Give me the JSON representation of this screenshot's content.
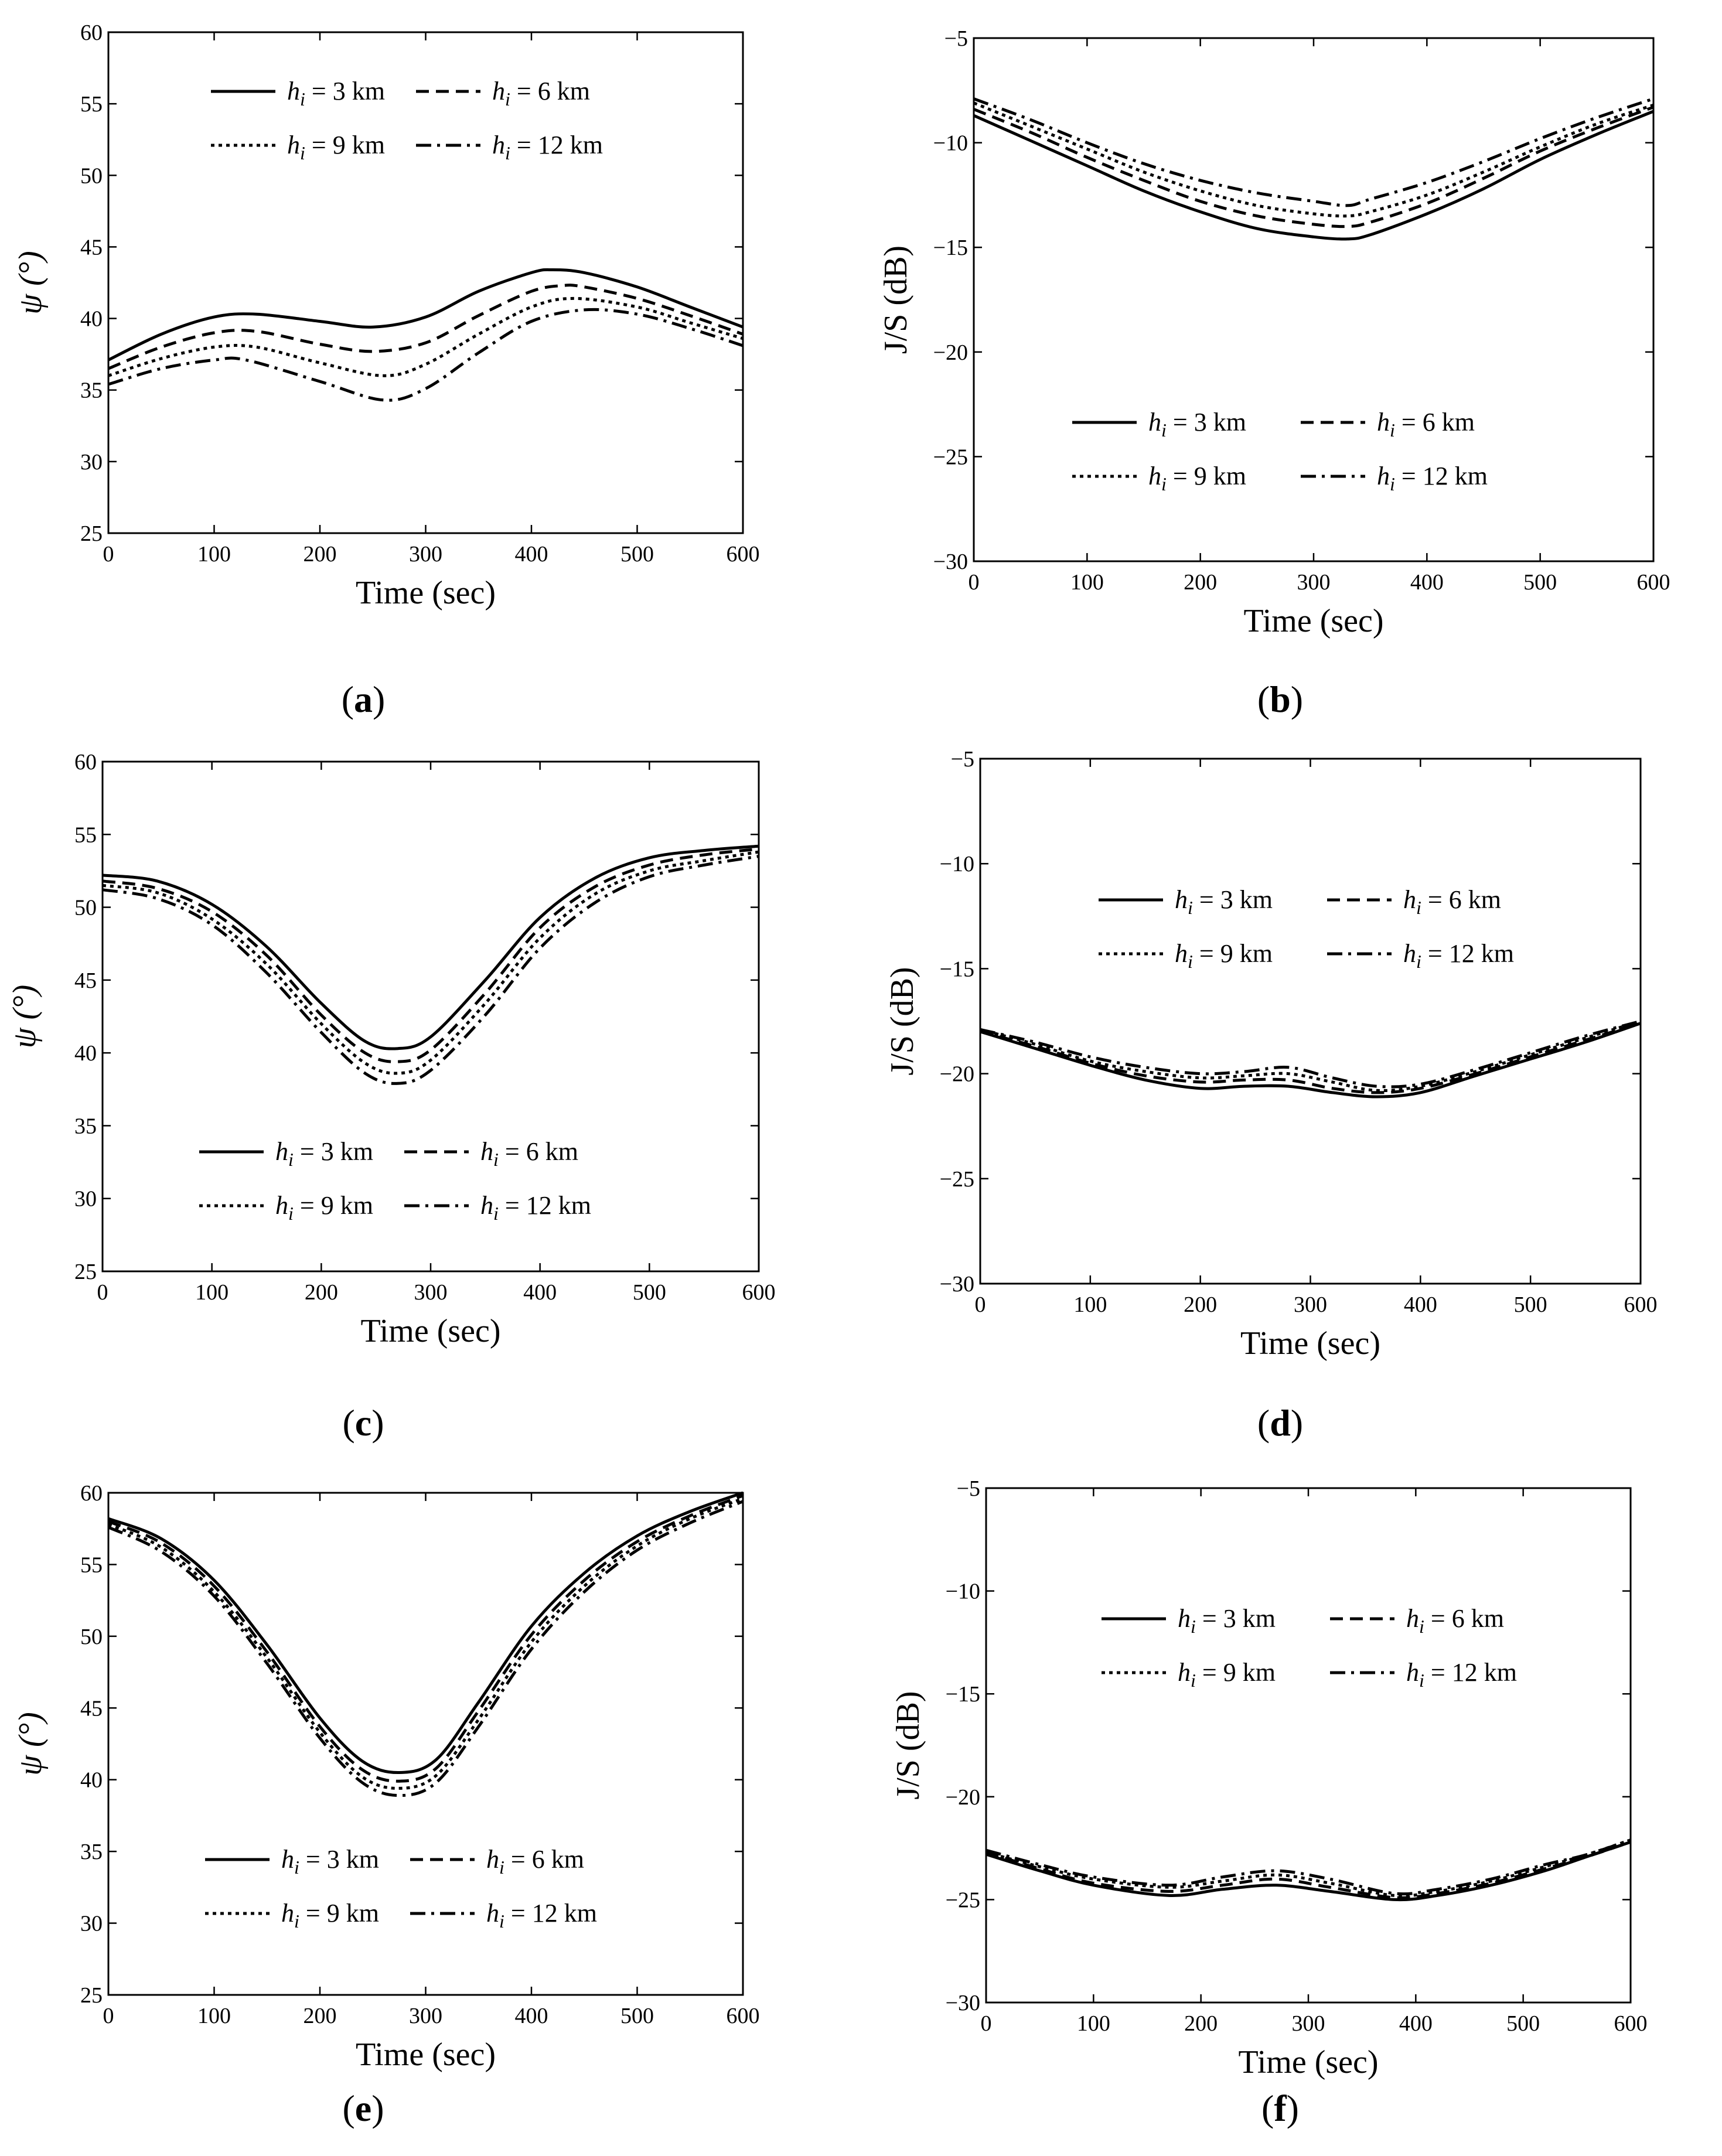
{
  "figure": {
    "panel_labels": [
      "(a)",
      "(b)",
      "(c)",
      "(d)",
      "(e)",
      "(f)"
    ]
  },
  "legend": {
    "km_unit": "km",
    "h_symbol": "h",
    "h_subscript": "i"
  },
  "chart_data": [
    {
      "id": "a",
      "type": "line",
      "xlabel": "Time (sec)",
      "ylabel": "ψ (°)",
      "xlim": [
        0,
        600
      ],
      "ylim": [
        25,
        60
      ],
      "xticks": [
        0,
        100,
        200,
        300,
        400,
        500,
        600
      ],
      "yticks": [
        25,
        30,
        35,
        40,
        45,
        50,
        55,
        60
      ],
      "legend_position": "top",
      "series": [
        {
          "name": "h_i = 3 km",
          "style": "solid",
          "x": [
            0,
            50,
            100,
            140,
            200,
            250,
            300,
            350,
            400,
            420,
            450,
            500,
            550,
            600
          ],
          "y": [
            37.1,
            38.9,
            40.1,
            40.3,
            39.8,
            39.4,
            40.1,
            41.9,
            43.2,
            43.4,
            43.2,
            42.2,
            40.8,
            39.4
          ]
        },
        {
          "name": "h_i = 6 km",
          "style": "dashed",
          "x": [
            0,
            50,
            100,
            140,
            200,
            250,
            300,
            350,
            400,
            430,
            450,
            500,
            550,
            600
          ],
          "y": [
            36.5,
            38.0,
            39.0,
            39.1,
            38.2,
            37.7,
            38.3,
            40.2,
            41.9,
            42.3,
            42.2,
            41.4,
            40.2,
            38.9
          ]
        },
        {
          "name": "h_i = 9 km",
          "style": "dotted",
          "x": [
            0,
            50,
            100,
            140,
            200,
            260,
            300,
            350,
            400,
            440,
            500,
            550,
            600
          ],
          "y": [
            36.0,
            37.2,
            38.0,
            38.0,
            36.9,
            36.0,
            36.8,
            38.9,
            40.8,
            41.4,
            40.8,
            39.7,
            38.6
          ]
        },
        {
          "name": "h_i = 12 km",
          "style": "dashdot",
          "x": [
            0,
            50,
            100,
            130,
            200,
            260,
            300,
            350,
            400,
            450,
            500,
            550,
            600
          ],
          "y": [
            35.4,
            36.5,
            37.1,
            37.1,
            35.6,
            34.3,
            35.1,
            37.6,
            39.8,
            40.6,
            40.3,
            39.3,
            38.1
          ]
        }
      ]
    },
    {
      "id": "b",
      "type": "line",
      "xlabel": "Time (sec)",
      "ylabel": "J/S (dB)",
      "xlim": [
        0,
        600
      ],
      "ylim": [
        -30,
        -5
      ],
      "xticks": [
        0,
        100,
        200,
        300,
        400,
        500,
        600
      ],
      "yticks": [
        -30,
        -25,
        -20,
        -15,
        -10,
        -5
      ],
      "legend_position": "bottom",
      "series": [
        {
          "name": "h_i = 3 km",
          "style": "solid",
          "x": [
            0,
            50,
            100,
            150,
            200,
            250,
            300,
            330,
            350,
            400,
            450,
            500,
            550,
            600
          ],
          "y": [
            -8.7,
            -9.9,
            -11.1,
            -12.3,
            -13.3,
            -14.1,
            -14.5,
            -14.6,
            -14.4,
            -13.4,
            -12.2,
            -10.8,
            -9.6,
            -8.5
          ]
        },
        {
          "name": "h_i = 6 km",
          "style": "dashed",
          "x": [
            0,
            50,
            100,
            150,
            200,
            250,
            300,
            330,
            350,
            400,
            450,
            500,
            550,
            600
          ],
          "y": [
            -8.4,
            -9.5,
            -10.7,
            -11.8,
            -12.8,
            -13.5,
            -13.9,
            -14.0,
            -13.8,
            -12.9,
            -11.7,
            -10.4,
            -9.3,
            -8.3
          ]
        },
        {
          "name": "h_i = 9 km",
          "style": "dotted",
          "x": [
            0,
            50,
            100,
            150,
            200,
            250,
            300,
            330,
            350,
            400,
            450,
            500,
            550,
            600
          ],
          "y": [
            -8.1,
            -9.2,
            -10.3,
            -11.4,
            -12.3,
            -13.0,
            -13.4,
            -13.5,
            -13.3,
            -12.5,
            -11.4,
            -10.2,
            -9.1,
            -8.2
          ]
        },
        {
          "name": "h_i = 12 km",
          "style": "dashdot",
          "x": [
            0,
            50,
            100,
            150,
            200,
            250,
            300,
            330,
            350,
            400,
            450,
            500,
            550,
            600
          ],
          "y": [
            -7.9,
            -8.9,
            -10.0,
            -11.0,
            -11.8,
            -12.4,
            -12.8,
            -13.0,
            -12.7,
            -11.9,
            -10.9,
            -9.8,
            -8.8,
            -7.9
          ]
        }
      ]
    },
    {
      "id": "c",
      "type": "line",
      "xlabel": "Time (sec)",
      "ylabel": "ψ (°)",
      "xlim": [
        0,
        600
      ],
      "ylim": [
        25,
        60
      ],
      "xticks": [
        0,
        100,
        200,
        300,
        400,
        500,
        600
      ],
      "yticks": [
        25,
        30,
        35,
        40,
        45,
        50,
        55,
        60
      ],
      "legend_position": "bottom",
      "series": [
        {
          "name": "h_i = 3 km",
          "style": "solid",
          "x": [
            0,
            50,
            100,
            150,
            200,
            240,
            270,
            300,
            350,
            400,
            450,
            500,
            550,
            600
          ],
          "y": [
            52.2,
            51.8,
            50.2,
            47.3,
            43.4,
            40.8,
            40.3,
            41.1,
            45.0,
            49.3,
            52.0,
            53.4,
            53.9,
            54.2
          ]
        },
        {
          "name": "h_i = 6 km",
          "style": "dashed",
          "x": [
            0,
            50,
            100,
            150,
            200,
            240,
            270,
            300,
            350,
            400,
            450,
            500,
            550,
            600
          ],
          "y": [
            51.8,
            51.3,
            49.7,
            46.7,
            42.6,
            40.0,
            39.4,
            40.2,
            44.1,
            48.6,
            51.4,
            52.9,
            53.6,
            54.0
          ]
        },
        {
          "name": "h_i = 9 km",
          "style": "dotted",
          "x": [
            0,
            50,
            100,
            150,
            200,
            240,
            270,
            300,
            350,
            400,
            450,
            500,
            550,
            600
          ],
          "y": [
            51.5,
            51.0,
            49.2,
            46.1,
            42.0,
            39.3,
            38.6,
            39.5,
            43.4,
            47.9,
            50.9,
            52.5,
            53.2,
            53.8
          ]
        },
        {
          "name": "h_i = 12 km",
          "style": "dashdot",
          "x": [
            0,
            50,
            100,
            150,
            200,
            240,
            270,
            300,
            350,
            400,
            450,
            500,
            550,
            600
          ],
          "y": [
            51.2,
            50.6,
            48.8,
            45.5,
            41.4,
            38.6,
            37.9,
            38.8,
            42.6,
            47.2,
            50.3,
            52.1,
            52.9,
            53.5
          ]
        }
      ]
    },
    {
      "id": "d",
      "type": "line",
      "xlabel": "Time (sec)",
      "ylabel": "J/S (dB)",
      "xlim": [
        0,
        600
      ],
      "ylim": [
        -30,
        -5
      ],
      "xticks": [
        0,
        100,
        200,
        300,
        400,
        500,
        600
      ],
      "yticks": [
        -30,
        -25,
        -20,
        -15,
        -10,
        -5
      ],
      "legend_position": "top",
      "series": [
        {
          "name": "h_i = 3 km",
          "style": "solid",
          "x": [
            0,
            50,
            100,
            150,
            200,
            240,
            280,
            320,
            360,
            400,
            450,
            500,
            550,
            600
          ],
          "y": [
            -18.0,
            -18.8,
            -19.6,
            -20.3,
            -20.7,
            -20.6,
            -20.6,
            -20.9,
            -21.1,
            -20.9,
            -20.1,
            -19.3,
            -18.5,
            -17.6
          ]
        },
        {
          "name": "h_i = 6 km",
          "style": "dashed",
          "x": [
            0,
            50,
            100,
            150,
            200,
            240,
            280,
            320,
            360,
            400,
            450,
            500,
            550,
            600
          ],
          "y": [
            -18.0,
            -18.7,
            -19.5,
            -20.1,
            -20.4,
            -20.3,
            -20.3,
            -20.7,
            -20.9,
            -20.7,
            -20.0,
            -19.2,
            -18.4,
            -17.6
          ]
        },
        {
          "name": "h_i = 9 km",
          "style": "dotted",
          "x": [
            0,
            50,
            100,
            150,
            200,
            240,
            280,
            320,
            360,
            400,
            450,
            500,
            550,
            600
          ],
          "y": [
            -17.9,
            -18.6,
            -19.4,
            -19.9,
            -20.2,
            -20.1,
            -20.0,
            -20.4,
            -20.8,
            -20.6,
            -19.9,
            -19.1,
            -18.3,
            -17.5
          ]
        },
        {
          "name": "h_i = 12 km",
          "style": "dashdot",
          "x": [
            0,
            50,
            100,
            150,
            200,
            240,
            280,
            320,
            360,
            400,
            450,
            500,
            550,
            600
          ],
          "y": [
            -17.9,
            -18.5,
            -19.2,
            -19.7,
            -20.0,
            -19.9,
            -19.7,
            -20.2,
            -20.6,
            -20.5,
            -19.8,
            -19.0,
            -18.2,
            -17.5
          ]
        }
      ]
    },
    {
      "id": "e",
      "type": "line",
      "xlabel": "Time (sec)",
      "ylabel": "ψ (°)",
      "xlim": [
        0,
        600
      ],
      "ylim": [
        25,
        60
      ],
      "xticks": [
        0,
        100,
        200,
        300,
        400,
        500,
        600
      ],
      "yticks": [
        25,
        30,
        35,
        40,
        45,
        50,
        55,
        60
      ],
      "legend_position": "bottom",
      "series": [
        {
          "name": "h_i = 3 km",
          "style": "solid",
          "x": [
            0,
            50,
            100,
            150,
            200,
            240,
            275,
            310,
            350,
            400,
            450,
            500,
            550,
            600
          ],
          "y": [
            58.2,
            56.8,
            53.9,
            49.4,
            44.3,
            41.3,
            40.5,
            41.4,
            45.4,
            50.7,
            54.4,
            57.0,
            58.7,
            60.0
          ]
        },
        {
          "name": "h_i = 6 km",
          "style": "dashed",
          "x": [
            0,
            50,
            100,
            150,
            200,
            240,
            275,
            310,
            350,
            400,
            450,
            500,
            550,
            600
          ],
          "y": [
            58.0,
            56.5,
            53.5,
            48.9,
            43.7,
            40.7,
            39.9,
            40.8,
            44.8,
            50.1,
            53.9,
            56.6,
            58.4,
            59.8
          ]
        },
        {
          "name": "h_i = 9 km",
          "style": "dotted",
          "x": [
            0,
            50,
            100,
            150,
            200,
            240,
            275,
            310,
            350,
            400,
            450,
            500,
            550,
            600
          ],
          "y": [
            57.8,
            56.2,
            53.1,
            48.5,
            43.3,
            40.2,
            39.4,
            40.3,
            44.2,
            49.6,
            53.5,
            56.3,
            58.2,
            59.6
          ]
        },
        {
          "name": "h_i = 12 km",
          "style": "dashdot",
          "x": [
            0,
            50,
            100,
            150,
            200,
            240,
            275,
            310,
            350,
            400,
            450,
            500,
            550,
            600
          ],
          "y": [
            57.6,
            55.9,
            52.8,
            48.1,
            42.9,
            39.8,
            38.9,
            39.8,
            43.7,
            49.1,
            53.1,
            56.0,
            57.9,
            59.4
          ]
        }
      ]
    },
    {
      "id": "f",
      "type": "line",
      "xlabel": "Time (sec)",
      "ylabel": "J/S (dB)",
      "xlim": [
        0,
        600
      ],
      "ylim": [
        -30,
        -5
      ],
      "xticks": [
        0,
        100,
        200,
        300,
        400,
        500,
        600
      ],
      "yticks": [
        -30,
        -25,
        -20,
        -15,
        -10,
        -5
      ],
      "legend_position": "top",
      "series": [
        {
          "name": "h_i = 3 km",
          "style": "solid",
          "x": [
            0,
            50,
            100,
            170,
            220,
            270,
            320,
            380,
            420,
            470,
            520,
            560,
            600
          ],
          "y": [
            -22.8,
            -23.6,
            -24.3,
            -24.8,
            -24.5,
            -24.3,
            -24.6,
            -25.0,
            -24.8,
            -24.3,
            -23.6,
            -22.9,
            -22.2
          ]
        },
        {
          "name": "h_i = 6 km",
          "style": "dashed",
          "x": [
            0,
            50,
            100,
            170,
            220,
            270,
            320,
            380,
            420,
            470,
            520,
            560,
            600
          ],
          "y": [
            -22.7,
            -23.5,
            -24.2,
            -24.6,
            -24.3,
            -24.0,
            -24.4,
            -24.9,
            -24.7,
            -24.2,
            -23.5,
            -22.9,
            -22.2
          ]
        },
        {
          "name": "h_i = 9 km",
          "style": "dotted",
          "x": [
            0,
            50,
            100,
            170,
            220,
            270,
            320,
            380,
            420,
            470,
            520,
            560,
            600
          ],
          "y": [
            -22.7,
            -23.4,
            -24.0,
            -24.4,
            -24.1,
            -23.8,
            -24.2,
            -24.8,
            -24.6,
            -24.1,
            -23.4,
            -22.8,
            -22.1
          ]
        },
        {
          "name": "h_i = 12 km",
          "style": "dashdot",
          "x": [
            0,
            50,
            100,
            170,
            220,
            270,
            320,
            380,
            420,
            470,
            520,
            560,
            600
          ],
          "y": [
            -22.6,
            -23.3,
            -23.9,
            -24.3,
            -23.9,
            -23.6,
            -24.0,
            -24.7,
            -24.5,
            -24.0,
            -23.3,
            -22.8,
            -22.1
          ]
        }
      ]
    }
  ]
}
